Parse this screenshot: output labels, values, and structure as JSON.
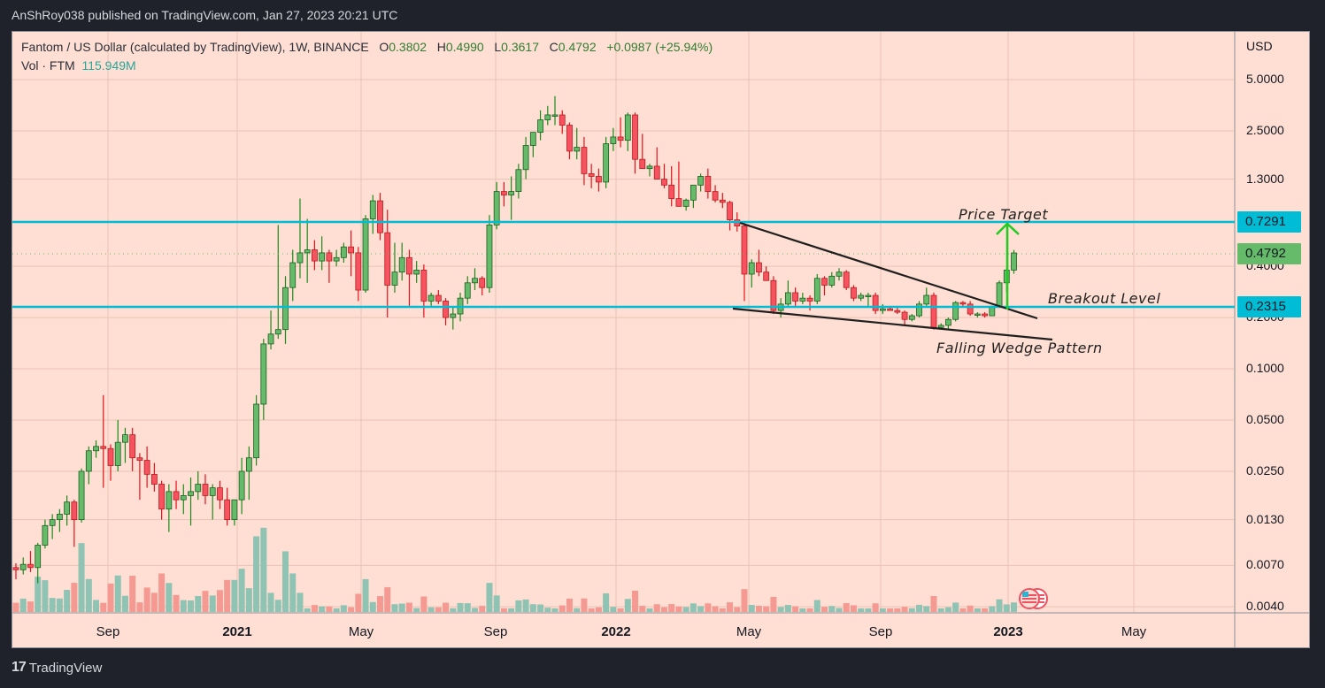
{
  "header": {
    "published": "AnShRoy038 published on TradingView.com, Jan 27, 2023 20:21 UTC"
  },
  "legend": {
    "symbol": "Fantom / US Dollar (calculated by TradingView), 1W, BINANCE",
    "open_label": "O",
    "open": "0.3802",
    "high_label": "H",
    "high": "0.4990",
    "low_label": "L",
    "low": "0.3617",
    "close_label": "C",
    "close": "0.4792",
    "change": "+0.0987 (+25.94%)",
    "volume_label": "Vol · FTM",
    "volume": "115.949M"
  },
  "price_axis": {
    "currency": "USD",
    "ticks": [
      "5.0000",
      "2.5000",
      "1.3000",
      "0.4000",
      "0.2000",
      "0.1000",
      "0.0500",
      "0.0250",
      "0.0130",
      "0.0070",
      "0.0040"
    ],
    "badges": [
      {
        "label": "0.7291",
        "color": "#00bcd4"
      },
      {
        "label": "0.4792",
        "color": "#66bb6a"
      },
      {
        "label": "0.2315",
        "color": "#00bcd4"
      }
    ]
  },
  "time_axis": {
    "ticks": [
      {
        "label": "Sep",
        "bold": false
      },
      {
        "label": "2021",
        "bold": true
      },
      {
        "label": "May",
        "bold": false
      },
      {
        "label": "Sep",
        "bold": false
      },
      {
        "label": "2022",
        "bold": true
      },
      {
        "label": "May",
        "bold": false
      },
      {
        "label": "Sep",
        "bold": false
      },
      {
        "label": "2023",
        "bold": true
      },
      {
        "label": "May",
        "bold": false
      }
    ]
  },
  "annotations": {
    "price_target": "Price Target",
    "breakout_level": "Breakout Level",
    "falling_wedge": "Falling Wedge Pattern"
  },
  "footer": {
    "brand": "TradingView"
  },
  "colors": {
    "up": "#66bb6a",
    "down": "#f7525f",
    "up_vol": "#8fc3b4",
    "down_vol": "#f59a92",
    "level": "#00bcd4",
    "arrow": "#1fcc1f",
    "bg": "#ffdfd3"
  },
  "chart_data": {
    "type": "candlestick",
    "title": "Fantom / US Dollar (calculated by TradingView), 1W, BINANCE",
    "xlabel": "",
    "ylabel": "USD",
    "y_scale": "log",
    "ylim": [
      0.0035,
      6.0
    ],
    "x_ticks": [
      "Sep 2020",
      "2021",
      "May 2021",
      "Sep 2021",
      "2022",
      "May 2022",
      "Sep 2022",
      "2023",
      "May 2023"
    ],
    "horizontal_levels": [
      {
        "name": "Price Target",
        "value": 0.7291
      },
      {
        "name": "Breakout Level",
        "value": 0.2315
      }
    ],
    "last": {
      "open": 0.3802,
      "high": 0.499,
      "low": 0.3617,
      "close": 0.4792,
      "change": 0.0987,
      "change_pct": 25.94,
      "volume": "115.949M"
    },
    "candles_approx": [
      [
        0.0068,
        0.0072,
        0.0058,
        0.0066
      ],
      [
        0.0066,
        0.0078,
        0.0062,
        0.0071
      ],
      [
        0.0071,
        0.0085,
        0.0064,
        0.0068
      ],
      [
        0.0068,
        0.0095,
        0.0055,
        0.0092
      ],
      [
        0.0092,
        0.013,
        0.0088,
        0.012
      ],
      [
        0.012,
        0.014,
        0.01,
        0.013
      ],
      [
        0.013,
        0.015,
        0.011,
        0.014
      ],
      [
        0.014,
        0.018,
        0.012,
        0.0165
      ],
      [
        0.0165,
        0.017,
        0.009,
        0.013
      ],
      [
        0.013,
        0.026,
        0.0125,
        0.025
      ],
      [
        0.025,
        0.035,
        0.021,
        0.033
      ],
      [
        0.033,
        0.038,
        0.03,
        0.035
      ],
      [
        0.035,
        0.07,
        0.02,
        0.034
      ],
      [
        0.034,
        0.036,
        0.022,
        0.027
      ],
      [
        0.027,
        0.05,
        0.025,
        0.037
      ],
      [
        0.037,
        0.045,
        0.028,
        0.041
      ],
      [
        0.041,
        0.045,
        0.025,
        0.03
      ],
      [
        0.03,
        0.032,
        0.017,
        0.029
      ],
      [
        0.029,
        0.035,
        0.02,
        0.024
      ],
      [
        0.024,
        0.028,
        0.019,
        0.021
      ],
      [
        0.021,
        0.022,
        0.013,
        0.015
      ],
      [
        0.015,
        0.021,
        0.011,
        0.019
      ],
      [
        0.019,
        0.022,
        0.015,
        0.017
      ],
      [
        0.017,
        0.021,
        0.014,
        0.018
      ],
      [
        0.018,
        0.023,
        0.012,
        0.019
      ],
      [
        0.019,
        0.025,
        0.017,
        0.021
      ],
      [
        0.021,
        0.024,
        0.016,
        0.018
      ],
      [
        0.018,
        0.021,
        0.013,
        0.02
      ],
      [
        0.02,
        0.022,
        0.015,
        0.017
      ],
      [
        0.017,
        0.02,
        0.012,
        0.013
      ],
      [
        0.013,
        0.017,
        0.012,
        0.017
      ],
      [
        0.017,
        0.03,
        0.014,
        0.025
      ],
      [
        0.025,
        0.035,
        0.017,
        0.03
      ],
      [
        0.03,
        0.07,
        0.027,
        0.062
      ],
      [
        0.062,
        0.15,
        0.05,
        0.14
      ],
      [
        0.14,
        0.22,
        0.13,
        0.16
      ],
      [
        0.16,
        0.7,
        0.15,
        0.17
      ],
      [
        0.17,
        0.35,
        0.14,
        0.3
      ],
      [
        0.3,
        0.5,
        0.25,
        0.42
      ],
      [
        0.42,
        1.0,
        0.34,
        0.48
      ],
      [
        0.48,
        0.76,
        0.32,
        0.5
      ],
      [
        0.5,
        0.57,
        0.38,
        0.43
      ],
      [
        0.43,
        0.6,
        0.38,
        0.48
      ],
      [
        0.48,
        0.5,
        0.32,
        0.43
      ],
      [
        0.43,
        0.5,
        0.4,
        0.45
      ],
      [
        0.45,
        0.55,
        0.42,
        0.52
      ],
      [
        0.52,
        0.65,
        0.35,
        0.48
      ],
      [
        0.48,
        0.52,
        0.25,
        0.29
      ],
      [
        0.29,
        0.8,
        0.28,
        0.76
      ],
      [
        0.76,
        1.05,
        0.62,
        0.97
      ],
      [
        0.97,
        1.08,
        0.57,
        0.63
      ],
      [
        0.63,
        0.86,
        0.2,
        0.31
      ],
      [
        0.31,
        0.55,
        0.28,
        0.37
      ],
      [
        0.37,
        0.55,
        0.33,
        0.45
      ],
      [
        0.45,
        0.5,
        0.23,
        0.36
      ],
      [
        0.36,
        0.43,
        0.32,
        0.38
      ],
      [
        0.38,
        0.41,
        0.2,
        0.25
      ],
      [
        0.25,
        0.28,
        0.23,
        0.27
      ],
      [
        0.27,
        0.29,
        0.24,
        0.25
      ],
      [
        0.25,
        0.26,
        0.18,
        0.2
      ],
      [
        0.2,
        0.23,
        0.17,
        0.21
      ],
      [
        0.21,
        0.28,
        0.19,
        0.26
      ],
      [
        0.26,
        0.35,
        0.24,
        0.32
      ],
      [
        0.32,
        0.39,
        0.29,
        0.34
      ],
      [
        0.34,
        0.35,
        0.27,
        0.3
      ],
      [
        0.3,
        0.8,
        0.28,
        0.7
      ],
      [
        0.7,
        1.25,
        0.66,
        1.1
      ],
      [
        1.1,
        1.25,
        0.9,
        1.05
      ],
      [
        1.05,
        1.35,
        0.75,
        1.1
      ],
      [
        1.1,
        1.6,
        1.0,
        1.48
      ],
      [
        1.48,
        2.3,
        1.3,
        2.05
      ],
      [
        2.05,
        2.4,
        1.75,
        2.45
      ],
      [
        2.45,
        3.3,
        2.2,
        2.9
      ],
      [
        2.9,
        3.5,
        2.7,
        3.1
      ],
      [
        3.1,
        4.0,
        2.7,
        3.1
      ],
      [
        3.1,
        3.3,
        2.4,
        2.7
      ],
      [
        2.7,
        2.8,
        1.7,
        1.9
      ],
      [
        1.9,
        2.6,
        1.7,
        2.0
      ],
      [
        2.0,
        2.3,
        1.2,
        1.4
      ],
      [
        1.4,
        1.6,
        1.15,
        1.35
      ],
      [
        1.35,
        1.5,
        1.1,
        1.25
      ],
      [
        1.25,
        2.3,
        1.15,
        2.1
      ],
      [
        2.1,
        2.6,
        1.9,
        2.3
      ],
      [
        2.3,
        3.0,
        2.0,
        2.2
      ],
      [
        2.2,
        3.2,
        1.9,
        3.1
      ],
      [
        3.1,
        3.2,
        1.4,
        1.7
      ],
      [
        1.7,
        2.4,
        1.6,
        1.5
      ],
      [
        1.5,
        1.6,
        1.35,
        1.55
      ],
      [
        1.55,
        2.0,
        1.3,
        1.3
      ],
      [
        1.3,
        1.6,
        1.15,
        1.2
      ],
      [
        1.2,
        1.55,
        0.9,
        1.0
      ],
      [
        1.0,
        1.65,
        0.93,
        0.9
      ],
      [
        0.9,
        1.0,
        0.85,
        0.98
      ],
      [
        0.98,
        1.1,
        0.88,
        1.2
      ],
      [
        1.2,
        1.4,
        1.1,
        1.35
      ],
      [
        1.35,
        1.5,
        1.0,
        1.1
      ],
      [
        1.1,
        1.2,
        0.95,
        0.98
      ],
      [
        0.98,
        1.08,
        0.88,
        0.95
      ],
      [
        0.95,
        0.97,
        0.65,
        0.75
      ],
      [
        0.75,
        0.83,
        0.64,
        0.69
      ],
      [
        0.69,
        0.72,
        0.25,
        0.36
      ],
      [
        0.36,
        0.44,
        0.3,
        0.42
      ],
      [
        0.42,
        0.5,
        0.35,
        0.37
      ],
      [
        0.37,
        0.4,
        0.35,
        0.33
      ],
      [
        0.33,
        0.35,
        0.21,
        0.22
      ],
      [
        0.22,
        0.26,
        0.2,
        0.24
      ],
      [
        0.24,
        0.33,
        0.23,
        0.28
      ],
      [
        0.28,
        0.3,
        0.23,
        0.25
      ],
      [
        0.25,
        0.28,
        0.24,
        0.26
      ],
      [
        0.26,
        0.27,
        0.22,
        0.25
      ],
      [
        0.25,
        0.36,
        0.24,
        0.34
      ],
      [
        0.34,
        0.35,
        0.27,
        0.31
      ],
      [
        0.31,
        0.37,
        0.3,
        0.35
      ],
      [
        0.35,
        0.39,
        0.33,
        0.37
      ],
      [
        0.37,
        0.38,
        0.29,
        0.3
      ],
      [
        0.3,
        0.31,
        0.25,
        0.26
      ],
      [
        0.26,
        0.28,
        0.25,
        0.27
      ],
      [
        0.27,
        0.28,
        0.23,
        0.27
      ],
      [
        0.27,
        0.28,
        0.21,
        0.22
      ],
      [
        0.22,
        0.24,
        0.21,
        0.225
      ],
      [
        0.225,
        0.23,
        0.22,
        0.22
      ],
      [
        0.22,
        0.23,
        0.21,
        0.215
      ],
      [
        0.215,
        0.22,
        0.18,
        0.195
      ],
      [
        0.195,
        0.21,
        0.19,
        0.205
      ],
      [
        0.205,
        0.25,
        0.2,
        0.24
      ],
      [
        0.24,
        0.3,
        0.23,
        0.27
      ],
      [
        0.27,
        0.28,
        0.17,
        0.175
      ],
      [
        0.175,
        0.185,
        0.17,
        0.18
      ],
      [
        0.18,
        0.2,
        0.17,
        0.195
      ],
      [
        0.195,
        0.25,
        0.19,
        0.245
      ],
      [
        0.245,
        0.25,
        0.23,
        0.24
      ],
      [
        0.24,
        0.25,
        0.205,
        0.21
      ],
      [
        0.21,
        0.215,
        0.2,
        0.21
      ],
      [
        0.21,
        0.215,
        0.2,
        0.205
      ],
      [
        0.205,
        0.235,
        0.205,
        0.23
      ],
      [
        0.23,
        0.33,
        0.23,
        0.32
      ],
      [
        0.32,
        0.39,
        0.28,
        0.38
      ],
      [
        0.3802,
        0.499,
        0.3617,
        0.4792
      ]
    ]
  }
}
